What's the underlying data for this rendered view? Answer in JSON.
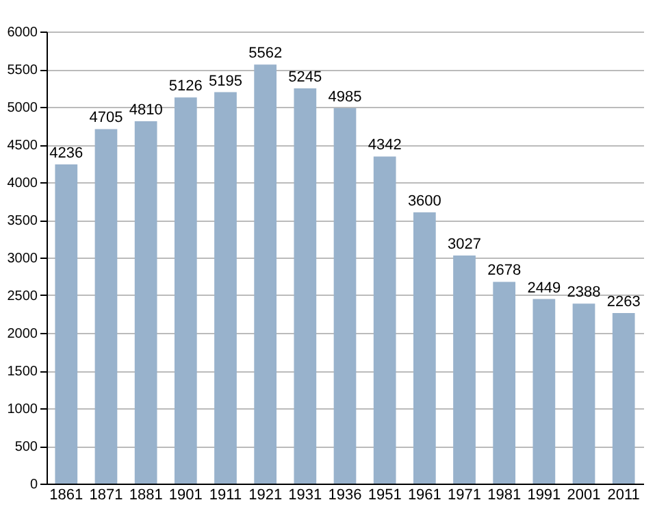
{
  "chart_data": {
    "type": "bar",
    "categories": [
      "1861",
      "1871",
      "1881",
      "1901",
      "1911",
      "1921",
      "1931",
      "1936",
      "1951",
      "1961",
      "1971",
      "1981",
      "1991",
      "2001",
      "2011"
    ],
    "values": [
      4236,
      4705,
      4810,
      5126,
      5195,
      5562,
      5245,
      4985,
      4342,
      3600,
      3027,
      2678,
      2449,
      2388,
      2263
    ],
    "color": "#98b2cc",
    "ylim": [
      0,
      6000
    ],
    "yticks": [
      0,
      500,
      1000,
      1500,
      2000,
      2500,
      3000,
      3500,
      4000,
      4500,
      5000,
      5500,
      6000
    ],
    "grid": "y",
    "data_labels": true
  }
}
